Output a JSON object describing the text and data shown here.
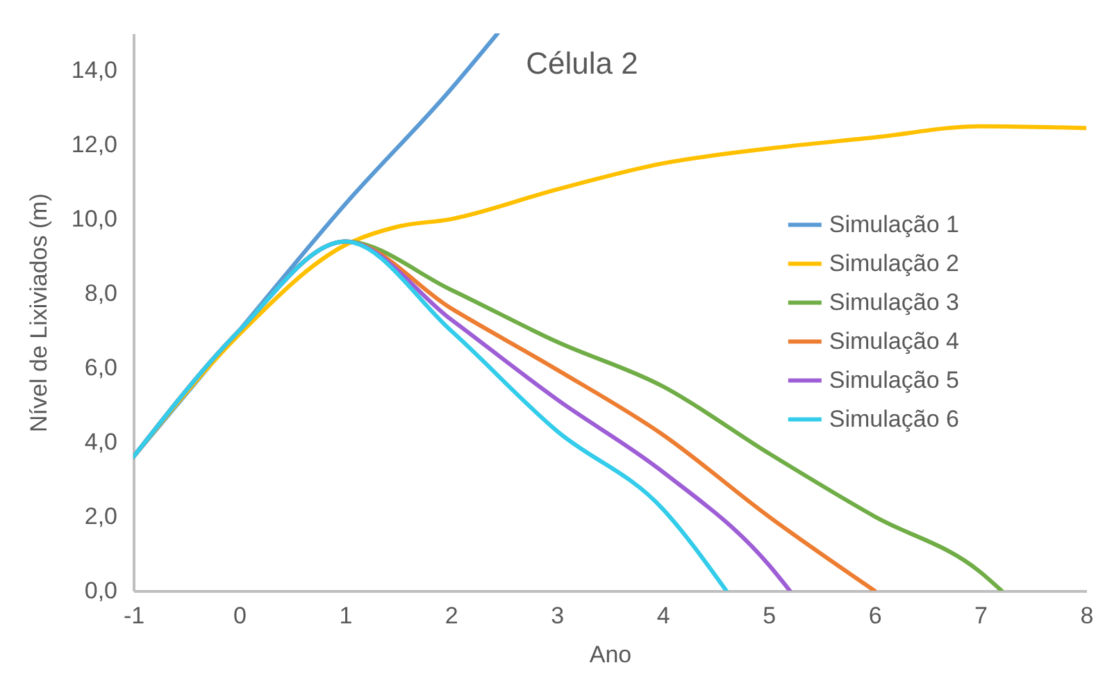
{
  "chart_data": {
    "type": "line",
    "title": "Célula 2",
    "xlabel": "Ano",
    "ylabel": "Nível de Lixiviados (m)",
    "xlim": [
      -1,
      8
    ],
    "xticks": [
      -1,
      0,
      1,
      2,
      3,
      4,
      5,
      6,
      7,
      8
    ],
    "ylim": [
      0,
      15
    ],
    "yticks": [
      {
        "value": 0,
        "label": "0,0"
      },
      {
        "value": 2,
        "label": "2,0"
      },
      {
        "value": 4,
        "label": "4,0"
      },
      {
        "value": 6,
        "label": "6,0"
      },
      {
        "value": 8,
        "label": "8,0"
      },
      {
        "value": 10,
        "label": "10,0"
      },
      {
        "value": 12,
        "label": "12,0"
      },
      {
        "value": 14,
        "label": "14,0"
      }
    ],
    "grid": false,
    "legend": "right",
    "marker": "none",
    "line_style": "solid",
    "series": [
      {
        "name": "Simulação 1",
        "color": "#5b9bd5",
        "x": [
          -1,
          0,
          1,
          2,
          2.44
        ],
        "values": [
          3.6,
          7.0,
          10.4,
          13.5,
          15.0
        ]
      },
      {
        "name": "Simulação 2",
        "color": "#ffc000",
        "x": [
          -1,
          0,
          1,
          1.5,
          2,
          3,
          4,
          5,
          6,
          7,
          8
        ],
        "values": [
          3.6,
          6.9,
          9.3,
          9.8,
          10.0,
          10.8,
          11.5,
          11.9,
          12.2,
          12.5,
          12.45
        ]
      },
      {
        "name": "Simulação 3",
        "color": "#70ad47",
        "x": [
          -1,
          0,
          1,
          2,
          3,
          4,
          5,
          6,
          7,
          7.2
        ],
        "values": [
          3.6,
          7.0,
          9.4,
          8.1,
          6.7,
          5.5,
          3.7,
          2.0,
          0.5,
          0.0
        ]
      },
      {
        "name": "Simulação 4",
        "color": "#ed7d31",
        "x": [
          -1,
          0,
          1,
          2,
          3,
          4,
          5,
          6
        ],
        "values": [
          3.6,
          7.0,
          9.4,
          7.6,
          5.95,
          4.2,
          2.0,
          0.0
        ]
      },
      {
        "name": "Simulação 5",
        "color": "#9e5ed6",
        "x": [
          -1,
          0,
          1,
          2,
          3,
          4,
          5,
          5.2
        ],
        "values": [
          3.6,
          7.0,
          9.4,
          7.3,
          5.15,
          3.2,
          0.7,
          0.0
        ]
      },
      {
        "name": "Simulação 6",
        "color": "#33ccea",
        "x": [
          -1,
          0,
          1,
          2,
          3,
          4,
          4.6
        ],
        "values": [
          3.6,
          7.0,
          9.4,
          7.0,
          4.3,
          2.2,
          0.0
        ]
      }
    ]
  }
}
